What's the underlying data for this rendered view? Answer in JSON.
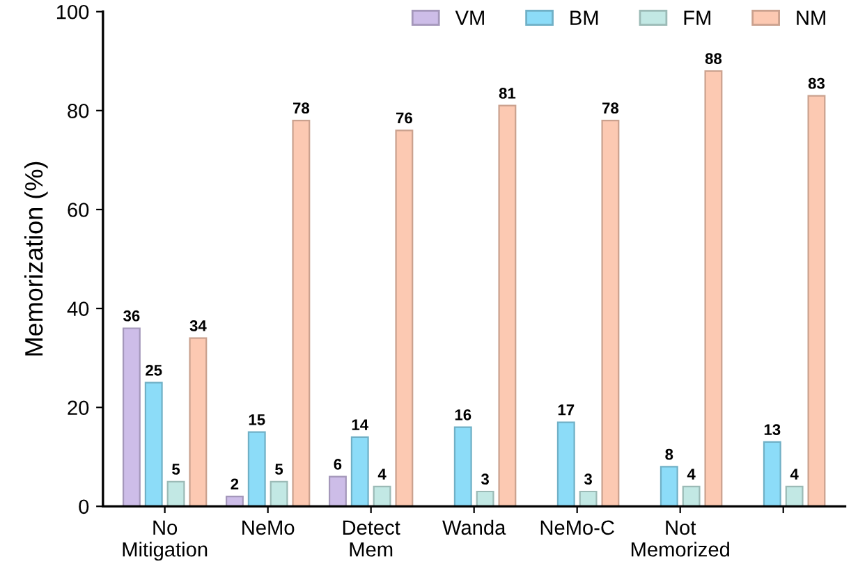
{
  "chart_data": {
    "type": "bar",
    "ylabel": "Memorization (%)",
    "categories": [
      "No\nMitigation",
      "NeMo",
      "Detect\nMem",
      "Wanda",
      "NeMo-C",
      "Not\nMemorized",
      null
    ],
    "series": [
      {
        "name": "VM",
        "color": "#cdbde8",
        "values": [
          36,
          2,
          6,
          null,
          null,
          null,
          null
        ]
      },
      {
        "name": "BM",
        "color": "#8cdcf8",
        "values": [
          25,
          15,
          14,
          16,
          17,
          8,
          13
        ]
      },
      {
        "name": "FM",
        "color": "#c2e8e4",
        "values": [
          5,
          5,
          4,
          3,
          3,
          4,
          4
        ]
      },
      {
        "name": "NM",
        "color": "#fcc9b2",
        "values": [
          34,
          78,
          76,
          81,
          78,
          88,
          83
        ]
      }
    ],
    "ylim": [
      0,
      100
    ],
    "yticks": [
      0,
      20,
      40,
      60,
      80,
      100
    ],
    "grid": false,
    "legend": "top right",
    "data_labels": true
  }
}
